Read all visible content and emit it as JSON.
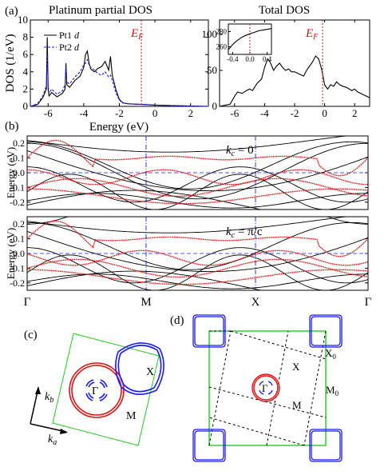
{
  "panel_labels": {
    "a": "(a)",
    "b": "(b)",
    "c": "(c)",
    "d": "(d)"
  },
  "colors": {
    "red": "#e01010",
    "blue": "#1a1aff",
    "green": "#22cc22",
    "black": "#000000"
  },
  "chart_data": [
    {
      "type": "line",
      "title": "Platinum partial DOS",
      "xlabel": "Energy (eV)",
      "ylabel": "DOS (1/eV)",
      "xlim": [
        -7,
        3
      ],
      "ylim": [
        0,
        10
      ],
      "xticks": [
        -6,
        -4,
        -2,
        0,
        2
      ],
      "yticks": [
        0,
        2,
        4,
        6,
        8,
        10
      ],
      "xtick_labels": [
        "-6",
        "-4",
        "-2",
        "0",
        "2"
      ],
      "ytick_labels": [
        "0",
        "2",
        "4",
        "6",
        "8",
        "10"
      ],
      "fermi_label": "E",
      "fermi_sub": "F",
      "legend_placement": "top-left",
      "series": [
        {
          "name": "Pt1 d",
          "x": [
            -7,
            -6.6,
            -6.3,
            -6.1,
            -6.05,
            -6.0,
            -5.95,
            -5.8,
            -5.5,
            -5.2,
            -5.05,
            -5.0,
            -4.95,
            -4.8,
            -4.5,
            -4.2,
            -4.0,
            -3.9,
            -3.8,
            -3.7,
            -3.6,
            -3.4,
            -3.2,
            -3.0,
            -2.8,
            -2.6,
            -2.5,
            -2.4,
            -2.2,
            -2.0,
            -1.8,
            -1.5,
            -1.0,
            -0.5,
            0,
            1,
            2,
            3
          ],
          "y": [
            0,
            0.2,
            1.0,
            2.0,
            8.0,
            2.0,
            1.2,
            1.6,
            1.1,
            1.5,
            2.0,
            5.0,
            2.5,
            2.2,
            3.0,
            3.5,
            4.5,
            6.0,
            6.4,
            5.0,
            4.3,
            4.0,
            4.4,
            4.6,
            5.2,
            4.2,
            5.8,
            3.6,
            2.0,
            0.8,
            0.4,
            0.3,
            0.25,
            0.2,
            0.15,
            0.08,
            0.04,
            0
          ]
        },
        {
          "name": "Pt2 d",
          "x": [
            -7,
            -6.6,
            -6.3,
            -6.1,
            -6.05,
            -6.0,
            -5.95,
            -5.8,
            -5.5,
            -5.2,
            -5.05,
            -5.0,
            -4.95,
            -4.8,
            -4.5,
            -4.2,
            -4.0,
            -3.9,
            -3.8,
            -3.7,
            -3.6,
            -3.4,
            -3.2,
            -3.0,
            -2.8,
            -2.6,
            -2.5,
            -2.4,
            -2.2,
            -2.0,
            -1.8,
            -1.5,
            -1.0,
            -0.5,
            0,
            1,
            2,
            3
          ],
          "y": [
            0,
            0.3,
            1.2,
            2.4,
            6.0,
            2.4,
            1.5,
            2.0,
            1.4,
            1.8,
            2.5,
            4.5,
            2.8,
            2.6,
            3.4,
            4.0,
            4.8,
            5.0,
            5.4,
            4.8,
            4.5,
            4.2,
            3.8,
            3.6,
            4.0,
            3.4,
            3.6,
            3.0,
            1.6,
            0.7,
            0.4,
            0.3,
            0.25,
            0.2,
            0.15,
            0.08,
            0.04,
            0
          ]
        }
      ]
    },
    {
      "type": "line",
      "title": "Total DOS",
      "xlabel": "",
      "ylabel": "",
      "xlim": [
        -7,
        3
      ],
      "ylim": [
        0,
        120
      ],
      "xticks": [
        -6,
        -4,
        -2,
        0,
        2
      ],
      "yticks": [
        0,
        50,
        100
      ],
      "xtick_labels": [
        "-6",
        "-4",
        "-2",
        "0",
        "2"
      ],
      "ytick_labels": [
        "0",
        "50",
        "100"
      ],
      "fermi_label": "E",
      "fermi_sub": "F",
      "series": [
        {
          "x": [
            -7,
            -6.3,
            -6.0,
            -5.8,
            -5.5,
            -5.2,
            -5.0,
            -4.8,
            -4.5,
            -4.2,
            -4.0,
            -3.8,
            -3.6,
            -3.4,
            -3.2,
            -3.0,
            -2.8,
            -2.6,
            -2.4,
            -2.2,
            -2.0,
            -1.8,
            -1.6,
            -1.4,
            -1.2,
            -1.0,
            -0.8,
            -0.6,
            -0.4,
            -0.2,
            0,
            0.2,
            0.4,
            0.6,
            0.8,
            1.0,
            1.2,
            1.5,
            1.8,
            2.0,
            2.2,
            2.4,
            2.6,
            2.8,
            3.0
          ],
          "y": [
            0,
            3,
            14,
            20,
            18,
            22,
            24,
            22,
            32,
            38,
            54,
            66,
            60,
            50,
            56,
            60,
            54,
            50,
            52,
            48,
            48,
            46,
            44,
            42,
            50,
            56,
            62,
            70,
            66,
            52,
            30,
            24,
            30,
            28,
            34,
            30,
            28,
            26,
            22,
            24,
            20,
            18,
            16,
            14,
            12
          ]
        }
      ],
      "inset": {
        "xlim": [
          -0.5,
          0.5
        ],
        "ylim": [
          250,
          290
        ],
        "xticks": [
          -0.4,
          0,
          0.4
        ],
        "yticks": [
          260,
          280
        ],
        "xtick_labels": [
          "-0.4",
          "0.0",
          "0.4"
        ],
        "ytick_labels": [
          "260",
          "280"
        ],
        "x": [
          -0.5,
          -0.4,
          -0.3,
          -0.2,
          -0.1,
          0,
          0.1,
          0.2,
          0.3,
          0.4,
          0.5
        ],
        "y": [
          256,
          263,
          268,
          272,
          275,
          277,
          279,
          281,
          282,
          283,
          284
        ]
      }
    },
    {
      "type": "line",
      "title": "",
      "ylabel": "Energy (eV)",
      "annotation": "k_c = 0",
      "ylim": [
        -0.25,
        0.25
      ],
      "yticks": [
        -0.2,
        -0.1,
        0.0,
        0.1,
        0.2
      ],
      "ytick_labels": [
        "-0.2",
        "-0.1",
        "0.0",
        "0.1",
        "0.2"
      ],
      "xtick_labels": [
        "Γ",
        "M",
        "X",
        "Γ"
      ]
    },
    {
      "type": "line",
      "title": "",
      "ylabel": "Energy (eV)",
      "annotation": "k_c = π/c",
      "ylim": [
        -0.25,
        0.25
      ],
      "yticks": [
        -0.2,
        -0.1,
        0.0,
        0.1,
        0.2
      ],
      "ytick_labels": [
        "-0.2",
        "-0.1",
        "0.0",
        "0.1",
        "0.2"
      ],
      "xtick_labels": [
        "Γ",
        "M",
        "X",
        "Γ"
      ]
    }
  ],
  "panel_c": {
    "labels": {
      "gamma": "Γ",
      "x": "X",
      "m": "M",
      "kb": "k",
      "kb_sub": "b",
      "ka": "k",
      "ka_sub": "a"
    }
  },
  "panel_d": {
    "labels": {
      "gamma": "Γ",
      "x": "X",
      "m": "M",
      "x0": "X",
      "x0_sub": "0",
      "m0": "M",
      "m0_sub": "0"
    }
  },
  "kc_zero": {
    "k": "k",
    "sub": "c",
    "rest": " = 0"
  },
  "kc_pi": {
    "k": "k",
    "sub": "c",
    "rest": " = π/c"
  }
}
